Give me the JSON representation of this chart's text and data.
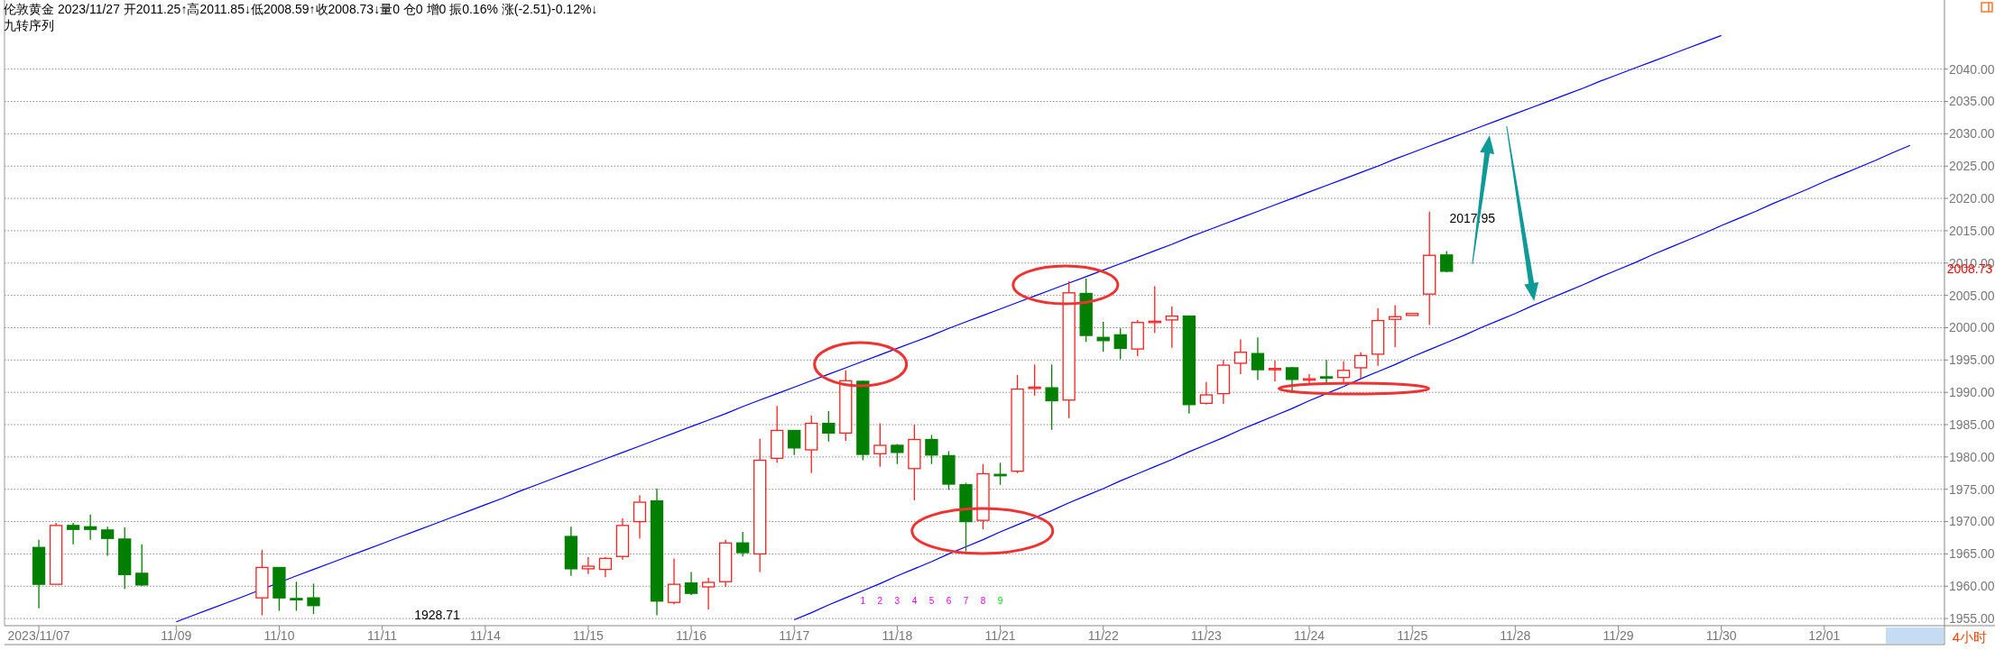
{
  "chart_data": {
    "type": "candlestick",
    "title": "伦敦黄金 2023/11/27 开2011.25↑高2011.85↓低2008.59↑收2008.73↓量0 仓0 增0 振0.16% 涨(-2.51)-0.12%↓",
    "subtitle": "九转序列",
    "categories": [
      "2023/11/07",
      null,
      null,
      null,
      null,
      null,
      null,
      null,
      "11/09",
      null,
      null,
      null,
      null,
      null,
      "11/10",
      null,
      null,
      null,
      null,
      null,
      "11/11",
      null,
      null,
      null,
      null,
      null,
      "11/14",
      null,
      null,
      null,
      null,
      null,
      "11/15",
      null,
      null,
      null,
      null,
      null,
      "11/16",
      null,
      null,
      null,
      null,
      null,
      "11/17",
      null,
      null,
      null,
      null,
      null,
      "11/18",
      null,
      null,
      null,
      null,
      null,
      "11/21",
      null,
      null,
      null,
      null,
      null,
      "11/22",
      null,
      null,
      null,
      null,
      null,
      "11/23",
      null,
      null,
      null,
      null,
      null,
      "11/24",
      null,
      null,
      null,
      null,
      null,
      "11/25",
      null,
      null,
      null,
      null,
      null,
      "11/28",
      null,
      null,
      null,
      null,
      null,
      "11/29",
      null,
      null,
      null,
      null,
      null,
      "11/30",
      null,
      null,
      null,
      null,
      null,
      "12/01",
      null,
      null,
      null,
      null,
      null
    ],
    "ohlc": [
      [
        1966.0,
        1967.2,
        1956.6,
        1960.3
      ],
      [
        1960.3,
        1969.8,
        1960.3,
        1969.4
      ],
      [
        1969.4,
        1969.8,
        1966.5,
        1968.8
      ],
      [
        1969.2,
        1971.1,
        1967.2,
        1968.8
      ],
      [
        1968.7,
        1969.2,
        1964.7,
        1967.4
      ],
      [
        1967.3,
        1969.1,
        1959.6,
        1961.8
      ],
      [
        1962.0,
        1966.5,
        1960.0,
        1960.2
      ],
      null,
      null,
      null,
      null,
      null,
      null,
      [
        1958.2,
        1965.6,
        1955.5,
        1962.9
      ],
      [
        1962.9,
        1962.9,
        1956.2,
        1958.2
      ],
      [
        1958.1,
        1960.7,
        1956.2,
        1958.0
      ],
      [
        1958.2,
        1960.4,
        1955.7,
        1957.0
      ],
      null,
      null,
      null,
      null,
      null,
      null,
      null,
      null,
      null,
      null,
      null,
      null,
      null,
      null,
      [
        1967.7,
        1969.2,
        1961.6,
        1962.7
      ],
      [
        1962.7,
        1964.5,
        1961.9,
        1963.1
      ],
      [
        1962.6,
        1964.5,
        1961.4,
        1964.3
      ],
      [
        1964.6,
        1970.5,
        1964.1,
        1969.4
      ],
      [
        1970.0,
        1974.1,
        1967.4,
        1973.0
      ],
      [
        1973.2,
        1975.1,
        1955.5,
        1957.7
      ],
      [
        1957.5,
        1964.3,
        1957.2,
        1960.3
      ],
      [
        1960.5,
        1962.2,
        1958.6,
        1958.9
      ],
      [
        1959.9,
        1961.3,
        1956.4,
        1960.6
      ],
      [
        1960.7,
        1967.2,
        1959.9,
        1966.7
      ],
      [
        1966.7,
        1968.4,
        1964.6,
        1965.2
      ],
      [
        1965.0,
        1982.8,
        1962.2,
        1979.5
      ],
      [
        1979.8,
        1987.9,
        1979.1,
        1984.1
      ],
      [
        1984.1,
        1984.1,
        1980.3,
        1981.4
      ],
      [
        1981.1,
        1986.4,
        1977.5,
        1985.2
      ],
      [
        1985.2,
        1987.1,
        1982.4,
        1983.7
      ],
      [
        1983.7,
        1993.4,
        1982.5,
        1991.8
      ],
      [
        1991.7,
        1991.8,
        1979.5,
        1980.4
      ],
      [
        1980.5,
        1985.2,
        1978.5,
        1981.8
      ],
      [
        1981.8,
        1982.0,
        1978.9,
        1980.7
      ],
      [
        1978.2,
        1985.0,
        1973.3,
        1982.7
      ],
      [
        1982.7,
        1983.4,
        1978.9,
        1980.3
      ],
      [
        1980.2,
        1980.9,
        1974.9,
        1975.8
      ],
      [
        1975.7,
        1976.0,
        1965.4,
        1970.0
      ],
      [
        1970.2,
        1978.9,
        1968.8,
        1977.4
      ],
      [
        1977.3,
        1979.1,
        1975.7,
        1977.2
      ],
      [
        1977.8,
        1992.7,
        1977.5,
        1990.5
      ],
      [
        1990.7,
        1994.3,
        1989.5,
        1990.8
      ],
      [
        1990.7,
        1994.3,
        1984.2,
        1988.7
      ],
      [
        1988.8,
        2007.2,
        1986.0,
        2005.4
      ],
      [
        2005.3,
        2007.6,
        1997.8,
        1998.8
      ],
      [
        1998.5,
        2000.9,
        1996.3,
        1998.0
      ],
      [
        1998.9,
        1999.9,
        1995.1,
        1996.8
      ],
      [
        1996.7,
        2001.2,
        1995.6,
        2000.8
      ],
      [
        2000.9,
        2006.4,
        1999.2,
        2001.0
      ],
      [
        2001.2,
        2003.3,
        1996.9,
        2001.8
      ],
      [
        2001.8,
        2001.8,
        1986.7,
        1988.1
      ],
      [
        1988.3,
        1991.6,
        1988.1,
        1989.6
      ],
      [
        1989.8,
        1995.0,
        1988.2,
        1994.2
      ],
      [
        1994.5,
        1998.2,
        1992.8,
        1996.2
      ],
      [
        1996.0,
        1998.5,
        1991.9,
        1993.5
      ],
      [
        1993.6,
        1994.9,
        1991.7,
        1993.7
      ],
      [
        1993.8,
        1993.9,
        1990.0,
        1992.0
      ],
      [
        1992.0,
        1992.8,
        1991.3,
        1992.1
      ],
      [
        1992.4,
        1995.0,
        1991.5,
        1992.3
      ],
      [
        1992.3,
        1994.8,
        1991.6,
        1993.4
      ],
      [
        1993.8,
        1996.2,
        1992.1,
        1995.7
      ],
      [
        1995.9,
        2003.0,
        1994.1,
        2001.1
      ],
      [
        2001.3,
        2003.5,
        1997.0,
        2001.7
      ],
      [
        2001.9,
        2002.2,
        2001.9,
        2002.2
      ],
      [
        2005.2,
        2017.95,
        2000.4,
        2011.2
      ],
      [
        2011.25,
        2011.85,
        2008.59,
        2008.73
      ],
      null,
      null,
      null,
      null,
      null,
      null,
      null,
      null,
      null,
      null,
      null,
      null,
      null,
      null,
      null,
      null,
      null,
      null,
      null,
      null,
      null,
      null,
      null,
      null,
      null,
      null,
      null
    ],
    "series": [
      {
        "type": "line",
        "color": "#0000ff",
        "values": [
          null,
          null,
          null,
          null,
          null,
          null,
          null,
          null,
          1954.5,
          1955.5,
          1956.5,
          1957.5,
          1958.5,
          null,
          null,
          1961.6,
          1962.6,
          1963.6,
          1964.6,
          1965.6,
          1966.6,
          1967.6,
          1968.6,
          1969.6,
          1970.6,
          1971.6,
          1972.6,
          1973.6,
          1974.7,
          1975.7,
          1976.7,
          1977.7,
          1978.7,
          1979.7,
          1980.7,
          1981.7,
          1982.7,
          1983.7,
          1984.7,
          1985.7,
          1986.7,
          1987.8,
          1988.8,
          1989.8,
          1990.8,
          1991.8,
          1992.8,
          1993.8,
          1994.8,
          1995.8,
          1996.8,
          1997.8,
          1998.8,
          1999.9,
          2000.9,
          2001.9,
          2002.9,
          2003.9,
          2004.9,
          2005.9,
          2006.9,
          2007.9,
          2008.9,
          2009.9,
          2010.9,
          2011.9,
          2012.9,
          2014.0,
          2015.0,
          2016.0,
          2017.0,
          2018.0,
          2019.0,
          2020.0,
          2021.0,
          2022.0,
          2023.0,
          2024.0,
          2025.0,
          2026.1,
          2027.1,
          2028.1,
          2029.1,
          2030.1,
          2031.1,
          2032.1,
          2033.1,
          2034.1,
          2035.1,
          2036.1,
          2037.1,
          2038.2,
          2039.2,
          2040.2,
          2041.2,
          2042.2,
          2043.2,
          2044.2,
          2045.2,
          null,
          null,
          null,
          null,
          null,
          null,
          null,
          null,
          null,
          null,
          null
        ]
      },
      {
        "type": "line",
        "color": "#0000ff",
        "values": [
          null,
          null,
          null,
          null,
          null,
          null,
          null,
          null,
          null,
          null,
          null,
          null,
          null,
          null,
          null,
          null,
          null,
          null,
          null,
          null,
          null,
          null,
          null,
          null,
          null,
          null,
          null,
          null,
          null,
          null,
          null,
          null,
          null,
          null,
          null,
          null,
          null,
          null,
          null,
          null,
          null,
          null,
          null,
          null,
          1954.8,
          1955.9,
          1957.1,
          1958.2,
          1959.3,
          1960.4,
          1961.6,
          1962.7,
          1963.8,
          1965.0,
          1966.1,
          1967.2,
          1968.4,
          1969.5,
          1970.6,
          1971.7,
          1972.9,
          1974.0,
          1975.1,
          1976.3,
          1977.4,
          1978.5,
          1979.6,
          1980.8,
          1981.9,
          1983.0,
          1984.2,
          1985.3,
          1986.4,
          1987.5,
          1988.7,
          1989.8,
          1990.9,
          1992.1,
          1993.2,
          1994.3,
          1995.5,
          1996.6,
          1997.7,
          1998.8,
          2000.0,
          2001.1,
          2002.2,
          2003.4,
          2004.5,
          2005.6,
          2006.7,
          2007.9,
          2009.0,
          2010.1,
          2011.3,
          2012.4,
          2013.5,
          2014.6,
          2015.8,
          2016.9,
          2018.0,
          2019.2,
          2020.3,
          2021.4,
          2022.6,
          2023.7,
          2024.8,
          2025.9,
          2027.1,
          2028.2
        ]
      }
    ],
    "ylim": [
      1953.9,
      2050.7
    ],
    "yticks": [
      {
        "value": 1955,
        "label": "1955.00"
      },
      {
        "value": 1960,
        "label": "1960.00"
      },
      {
        "value": 1965,
        "label": "1965.00"
      },
      {
        "value": 1970,
        "label": "1970.00"
      },
      {
        "value": 1975,
        "label": "1975.00"
      },
      {
        "value": 1980,
        "label": "1980.00"
      },
      {
        "value": 1985,
        "label": "1985.00"
      },
      {
        "value": 1990,
        "label": "1990.00"
      },
      {
        "value": 1995,
        "label": "1995.00"
      },
      {
        "value": 2000,
        "label": "2000.00"
      },
      {
        "value": 2005,
        "label": "2005.00"
      },
      {
        "value": 2010,
        "label": "2010.00"
      },
      {
        "value": 2015,
        "label": "2015.00"
      },
      {
        "value": 2020,
        "label": "2020.00"
      },
      {
        "value": 2025,
        "label": "2025.00"
      },
      {
        "value": 2030,
        "label": "2030.00"
      },
      {
        "value": 2035,
        "label": "2035.00"
      },
      {
        "value": 2040,
        "label": "2040.00"
      }
    ],
    "grid": "y",
    "annotations": [
      "1",
      "2",
      "3",
      "4",
      "5",
      "6",
      "7",
      "8",
      "9",
      "1928.71",
      "4小时",
      "2017.95",
      "2008.73"
    ]
  }
}
